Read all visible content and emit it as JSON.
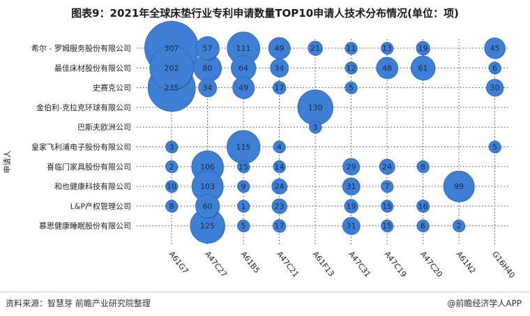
{
  "title": "图表9：2021年全球床垫行业专利申请数量TOP10申请人技术分布情况(单位：项)",
  "source": "资料来源：智慧芽 前瞻产业研究院整理",
  "brand": "@前瞻经济学人APP",
  "colors": {
    "bubble": "#3e7fd6",
    "bubble_edge": "#2a66bb",
    "grid": "#444444"
  },
  "chart_data": {
    "type": "scatter",
    "ylabel": "申请人",
    "categories_x": [
      "A61G7",
      "A47C27",
      "A61B5",
      "A47C21",
      "A61F13",
      "A47C31",
      "A47C19",
      "A47C20",
      "A61N2",
      "G16H40"
    ],
    "categories_y": [
      "希尔 - 罗姆服务股份有限公司",
      "最佳床材股份有限公司",
      "史赛克公司",
      "金伯利-克拉克环球有限公司",
      "巴斯夫欧洲公司",
      "皇家飞利浦电子股份有限公司",
      "喜临门家具股份有限公司",
      "和也健康科技有限公司",
      "L&P产权管理公司",
      "慕思健康睡眠股份有限公司"
    ],
    "points": [
      {
        "applicant": "希尔 - 罗姆服务股份有限公司",
        "code": "A61G7",
        "value": 307
      },
      {
        "applicant": "希尔 - 罗姆服务股份有限公司",
        "code": "A47C27",
        "value": 57
      },
      {
        "applicant": "希尔 - 罗姆服务股份有限公司",
        "code": "A61B5",
        "value": 111
      },
      {
        "applicant": "希尔 - 罗姆服务股份有限公司",
        "code": "A47C21",
        "value": 49
      },
      {
        "applicant": "希尔 - 罗姆服务股份有限公司",
        "code": "A61F13",
        "value": 21
      },
      {
        "applicant": "希尔 - 罗姆服务股份有限公司",
        "code": "A47C31",
        "value": 11
      },
      {
        "applicant": "希尔 - 罗姆服务股份有限公司",
        "code": "A47C19",
        "value": 13
      },
      {
        "applicant": "希尔 - 罗姆服务股份有限公司",
        "code": "A47C20",
        "value": 19
      },
      {
        "applicant": "希尔 - 罗姆服务股份有限公司",
        "code": "G16H40",
        "value": 45
      },
      {
        "applicant": "最佳床材股份有限公司",
        "code": "A61G7",
        "value": 202
      },
      {
        "applicant": "最佳床材股份有限公司",
        "code": "A47C27",
        "value": 80
      },
      {
        "applicant": "最佳床材股份有限公司",
        "code": "A61B5",
        "value": 64
      },
      {
        "applicant": "最佳床材股份有限公司",
        "code": "A47C21",
        "value": 34
      },
      {
        "applicant": "最佳床材股份有限公司",
        "code": "A47C31",
        "value": 12
      },
      {
        "applicant": "最佳床材股份有限公司",
        "code": "A47C19",
        "value": 48
      },
      {
        "applicant": "最佳床材股份有限公司",
        "code": "A47C20",
        "value": 61
      },
      {
        "applicant": "最佳床材股份有限公司",
        "code": "G16H40",
        "value": 6
      },
      {
        "applicant": "史赛克公司",
        "code": "A61G7",
        "value": 235
      },
      {
        "applicant": "史赛克公司",
        "code": "A47C27",
        "value": 34
      },
      {
        "applicant": "史赛克公司",
        "code": "A61B5",
        "value": 49
      },
      {
        "applicant": "史赛克公司",
        "code": "A47C21",
        "value": 17
      },
      {
        "applicant": "史赛克公司",
        "code": "A47C31",
        "value": 5
      },
      {
        "applicant": "史赛克公司",
        "code": "G16H40",
        "value": 30
      },
      {
        "applicant": "金伯利-克拉克环球有限公司",
        "code": "A61F13",
        "value": 130
      },
      {
        "applicant": "巴斯夫欧洲公司",
        "code": "A61F13",
        "value": 3
      },
      {
        "applicant": "皇家飞利浦电子股份有限公司",
        "code": "A61G7",
        "value": 3
      },
      {
        "applicant": "皇家飞利浦电子股份有限公司",
        "code": "A61B5",
        "value": 115
      },
      {
        "applicant": "皇家飞利浦电子股份有限公司",
        "code": "A47C21",
        "value": 4
      },
      {
        "applicant": "皇家飞利浦电子股份有限公司",
        "code": "G16H40",
        "value": 5
      },
      {
        "applicant": "喜临门家具股份有限公司",
        "code": "A61G7",
        "value": 2
      },
      {
        "applicant": "喜临门家具股份有限公司",
        "code": "A47C27",
        "value": 106
      },
      {
        "applicant": "喜临门家具股份有限公司",
        "code": "A61B5",
        "value": 15
      },
      {
        "applicant": "喜临门家具股份有限公司",
        "code": "A47C21",
        "value": 14
      },
      {
        "applicant": "喜临门家具股份有限公司",
        "code": "A47C31",
        "value": 29
      },
      {
        "applicant": "喜临门家具股份有限公司",
        "code": "A47C19",
        "value": 24
      },
      {
        "applicant": "喜临门家具股份有限公司",
        "code": "A47C20",
        "value": 8
      },
      {
        "applicant": "和也健康科技有限公司",
        "code": "A61G7",
        "value": 10
      },
      {
        "applicant": "和也健康科技有限公司",
        "code": "A47C27",
        "value": 103
      },
      {
        "applicant": "和也健康科技有限公司",
        "code": "A61B5",
        "value": 9
      },
      {
        "applicant": "和也健康科技有限公司",
        "code": "A47C21",
        "value": 24
      },
      {
        "applicant": "和也健康科技有限公司",
        "code": "A47C31",
        "value": 31
      },
      {
        "applicant": "和也健康科技有限公司",
        "code": "A47C19",
        "value": 7
      },
      {
        "applicant": "和也健康科技有限公司",
        "code": "A61N2",
        "value": 99
      },
      {
        "applicant": "L&P产权管理公司",
        "code": "A61G7",
        "value": 8
      },
      {
        "applicant": "L&P产权管理公司",
        "code": "A47C27",
        "value": 60
      },
      {
        "applicant": "L&P产权管理公司",
        "code": "A61B5",
        "value": 1
      },
      {
        "applicant": "L&P产权管理公司",
        "code": "A47C21",
        "value": 23
      },
      {
        "applicant": "L&P产权管理公司",
        "code": "A47C31",
        "value": 19
      },
      {
        "applicant": "L&P产权管理公司",
        "code": "A47C19",
        "value": 15
      },
      {
        "applicant": "L&P产权管理公司",
        "code": "A47C20",
        "value": 16
      },
      {
        "applicant": "慕思健康睡眠股份有限公司",
        "code": "A47C27",
        "value": 125
      },
      {
        "applicant": "慕思健康睡眠股份有限公司",
        "code": "A61B5",
        "value": 5
      },
      {
        "applicant": "慕思健康睡眠股份有限公司",
        "code": "A47C21",
        "value": 17
      },
      {
        "applicant": "慕思健康睡眠股份有限公司",
        "code": "A47C31",
        "value": 31
      },
      {
        "applicant": "慕思健康睡眠股份有限公司",
        "code": "A47C19",
        "value": 15
      },
      {
        "applicant": "慕思健康睡眠股份有限公司",
        "code": "A47C20",
        "value": 6
      },
      {
        "applicant": "慕思健康睡眠股份有限公司",
        "code": "A61N2",
        "value": 2
      }
    ],
    "grid": true
  }
}
